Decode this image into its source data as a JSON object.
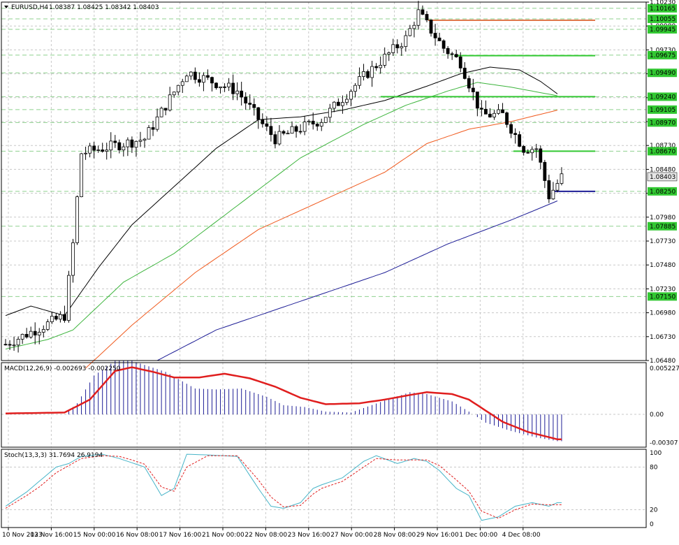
{
  "header": {
    "symbol": "EURUSD,H4",
    "ohlc": "1.08387 1.08425 1.08342 1.08403"
  },
  "colors": {
    "up_candle": "#ffffff",
    "down_candle": "#000000",
    "ma_fast": "#000000",
    "ma_mid": "#3cb43c",
    "ma_slow": "#f05a1e",
    "ma_long": "#1e1e96",
    "level_resistance": "#e0784a",
    "level_green": "#32c832",
    "level_blue": "#1e1e96",
    "macd_hist": "#1e1e96",
    "macd_signal": "#e01e1e",
    "stoch_main": "#46b4c8",
    "stoch_signal": "#e01e1e",
    "price_tag_bg": "#e6e6e6"
  },
  "chart_data": [
    {
      "type": "candlestick",
      "name": "price",
      "ylim": [
        1.0648,
        1.1023
      ],
      "y_ticks": [
        "1.10230",
        "1.09980",
        "1.09730",
        "1.09480",
        "1.09230",
        "1.08980",
        "1.08730",
        "1.08480",
        "1.08230",
        "1.07980",
        "1.07730",
        "1.07480",
        "1.07230",
        "1.06980",
        "1.06730",
        "1.06480"
      ],
      "level_labels": [
        {
          "value": 1.10165,
          "text": "1.10165"
        },
        {
          "value": 1.10055,
          "text": "1.10055"
        },
        {
          "value": 1.09945,
          "text": "1.09945"
        },
        {
          "value": 1.09675,
          "text": "1.09675"
        },
        {
          "value": 1.0949,
          "text": "1.09490"
        },
        {
          "value": 1.0924,
          "text": "1.09240"
        },
        {
          "value": 1.09105,
          "text": "1.09105"
        },
        {
          "value": 1.0897,
          "text": "1.08970"
        },
        {
          "value": 1.0867,
          "text": "1.08670"
        },
        {
          "value": 1.0825,
          "text": "1.08250"
        },
        {
          "value": 1.07885,
          "text": "1.07885"
        },
        {
          "value": 1.0715,
          "text": "1.07150"
        }
      ],
      "current_price": {
        "value": 1.08403,
        "text": "1.08403"
      },
      "x_labels": [
        "10 Nov 2023",
        "13 Nov 16:00",
        "15 Nov 00:00",
        "16 Nov 08:00",
        "17 Nov 16:00",
        "21 Nov 00:00",
        "22 Nov 08:00",
        "23 Nov 16:00",
        "27 Nov 00:00",
        "28 Nov 08:00",
        "29 Nov 16:00",
        "1 Dec 00:00",
        "4 Dec 08:00"
      ],
      "key_points": [
        {
          "x": 0,
          "y": 1.0665
        },
        {
          "x": 14,
          "y": 1.0695
        },
        {
          "x": 16,
          "y": 1.077
        },
        {
          "x": 18,
          "y": 1.0865
        },
        {
          "x": 33,
          "y": 1.088
        },
        {
          "x": 43,
          "y": 1.095
        },
        {
          "x": 55,
          "y": 1.093
        },
        {
          "x": 61,
          "y": 1.0895
        },
        {
          "x": 64,
          "y": 1.088
        },
        {
          "x": 75,
          "y": 1.09
        },
        {
          "x": 85,
          "y": 1.0945
        },
        {
          "x": 95,
          "y": 1.0985
        },
        {
          "x": 98,
          "y": 1.1012
        },
        {
          "x": 104,
          "y": 1.0975
        },
        {
          "x": 108,
          "y": 1.096
        },
        {
          "x": 113,
          "y": 1.0905
        },
        {
          "x": 118,
          "y": 1.0905
        },
        {
          "x": 123,
          "y": 1.087
        },
        {
          "x": 126,
          "y": 1.087
        },
        {
          "x": 129,
          "y": 1.082
        },
        {
          "x": 132,
          "y": 1.084
        }
      ],
      "levels": [
        {
          "value": 1.1004,
          "kind": "resistance"
        },
        {
          "value": 1.0967,
          "kind": "green"
        },
        {
          "value": 1.0924,
          "kind": "green"
        },
        {
          "value": 1.0867,
          "kind": "green"
        },
        {
          "value": 1.0825,
          "kind": "blue"
        }
      ],
      "moving_averages": [
        {
          "key": "ma_fast",
          "points": [
            [
              0,
              1.0695
            ],
            [
              6,
              1.0705
            ],
            [
              14,
              1.0695
            ],
            [
              22,
              1.0745
            ],
            [
              30,
              1.079
            ],
            [
              40,
              1.083
            ],
            [
              50,
              1.087
            ],
            [
              60,
              1.09
            ],
            [
              70,
              1.0903
            ],
            [
              80,
              1.091
            ],
            [
              90,
              1.092
            ],
            [
              100,
              1.0935
            ],
            [
              108,
              1.0948
            ],
            [
              115,
              1.0955
            ],
            [
              122,
              1.0952
            ],
            [
              127,
              1.094
            ],
            [
              131,
              1.0927
            ]
          ]
        },
        {
          "key": "ma_mid",
          "points": [
            [
              0,
              1.066
            ],
            [
              10,
              1.067
            ],
            [
              16,
              1.068
            ],
            [
              28,
              1.073
            ],
            [
              40,
              1.076
            ],
            [
              55,
              1.081
            ],
            [
              70,
              1.086
            ],
            [
              85,
              1.0895
            ],
            [
              95,
              1.0915
            ],
            [
              105,
              1.093
            ],
            [
              112,
              1.0939
            ],
            [
              120,
              1.0934
            ],
            [
              131,
              1.0925
            ]
          ]
        },
        {
          "key": "ma_slow",
          "points": [
            [
              19,
              1.064
            ],
            [
              30,
              1.0685
            ],
            [
              45,
              1.074
            ],
            [
              60,
              1.0785
            ],
            [
              75,
              1.0815
            ],
            [
              90,
              1.0845
            ],
            [
              100,
              1.0875
            ],
            [
              110,
              1.089
            ],
            [
              120,
              1.0898
            ],
            [
              131,
              1.091
            ]
          ]
        },
        {
          "key": "ma_long",
          "points": [
            [
              36,
              1.0648
            ],
            [
              50,
              1.068
            ],
            [
              70,
              1.071
            ],
            [
              90,
              1.074
            ],
            [
              105,
              1.077
            ],
            [
              120,
              1.0795
            ],
            [
              131,
              1.0815
            ]
          ]
        }
      ]
    },
    {
      "type": "histogram",
      "name": "macd",
      "label": "MACD(12,26,9) -0.002693 -0.002250",
      "ylim": [
        -0.00355,
        0.0056
      ],
      "y_ticks": [
        {
          "value": 0.005227,
          "text": "0.005227"
        },
        {
          "value": 0.0,
          "text": "0.00"
        },
        {
          "value": -0.00307,
          "text": "-0.00307"
        }
      ],
      "hist_points": [
        [
          0,
          0
        ],
        [
          14,
          0
        ],
        [
          17,
          0.0012
        ],
        [
          21,
          0.0042
        ],
        [
          26,
          0.0058
        ],
        [
          30,
          0.0058
        ],
        [
          38,
          0.0046
        ],
        [
          45,
          0.0028
        ],
        [
          50,
          0.0027
        ],
        [
          56,
          0.0028
        ],
        [
          62,
          0.0019
        ],
        [
          66,
          0.001
        ],
        [
          71,
          0.0008
        ],
        [
          76,
          0.0003
        ],
        [
          82,
          0.0002
        ],
        [
          90,
          0.0015
        ],
        [
          96,
          0.0024
        ],
        [
          100,
          0.0022
        ],
        [
          106,
          0.0014
        ],
        [
          110,
          0.0003
        ],
        [
          114,
          -0.0009
        ],
        [
          120,
          -0.0018
        ],
        [
          126,
          -0.0025
        ],
        [
          131,
          -0.0029
        ]
      ],
      "signal_points": [
        [
          0,
          0.0001
        ],
        [
          14,
          0.0002
        ],
        [
          20,
          0.0016
        ],
        [
          26,
          0.0047
        ],
        [
          30,
          0.0051
        ],
        [
          35,
          0.0046
        ],
        [
          40,
          0.004
        ],
        [
          46,
          0.004
        ],
        [
          52,
          0.0044
        ],
        [
          58,
          0.0039
        ],
        [
          64,
          0.003
        ],
        [
          70,
          0.0018
        ],
        [
          76,
          0.0011
        ],
        [
          84,
          0.0012
        ],
        [
          90,
          0.0016
        ],
        [
          96,
          0.0021
        ],
        [
          100,
          0.0024
        ],
        [
          106,
          0.0022
        ],
        [
          110,
          0.0016
        ],
        [
          114,
          0.0004
        ],
        [
          118,
          -0.0008
        ],
        [
          124,
          -0.0019
        ],
        [
          131,
          -0.0027
        ]
      ]
    },
    {
      "type": "line",
      "name": "stochastic",
      "label": "Stoch(13,3,3) 31.7694 26.9194",
      "ylim": [
        -5,
        105
      ],
      "y_ticks": [
        {
          "value": 100,
          "text": "100"
        },
        {
          "value": 80,
          "text": "80"
        },
        {
          "value": 20,
          "text": "20"
        },
        {
          "value": 0,
          "text": "0"
        }
      ],
      "main_points": [
        [
          0,
          25
        ],
        [
          5,
          45
        ],
        [
          8,
          60
        ],
        [
          12,
          80
        ],
        [
          15,
          85
        ],
        [
          18,
          95
        ],
        [
          23,
          98
        ],
        [
          27,
          92
        ],
        [
          30,
          86
        ],
        [
          33,
          80
        ],
        [
          37,
          40
        ],
        [
          40,
          50
        ],
        [
          43,
          98
        ],
        [
          48,
          97
        ],
        [
          55,
          95
        ],
        [
          60,
          50
        ],
        [
          63,
          25
        ],
        [
          66,
          22
        ],
        [
          70,
          30
        ],
        [
          73,
          50
        ],
        [
          75,
          55
        ],
        [
          80,
          65
        ],
        [
          85,
          88
        ],
        [
          88,
          96
        ],
        [
          93,
          85
        ],
        [
          97,
          92
        ],
        [
          100,
          88
        ],
        [
          103,
          75
        ],
        [
          107,
          50
        ],
        [
          110,
          40
        ],
        [
          113,
          5
        ],
        [
          117,
          10
        ],
        [
          121,
          25
        ],
        [
          125,
          30
        ],
        [
          129,
          25
        ],
        [
          131,
          30
        ]
      ],
      "signal_points": [
        [
          0,
          22
        ],
        [
          5,
          40
        ],
        [
          8,
          52
        ],
        [
          12,
          72
        ],
        [
          15,
          82
        ],
        [
          18,
          92
        ],
        [
          23,
          96
        ],
        [
          27,
          95
        ],
        [
          30,
          90
        ],
        [
          33,
          84
        ],
        [
          37,
          52
        ],
        [
          40,
          46
        ],
        [
          43,
          80
        ],
        [
          48,
          96
        ],
        [
          55,
          96
        ],
        [
          60,
          62
        ],
        [
          63,
          38
        ],
        [
          66,
          24
        ],
        [
          70,
          26
        ],
        [
          73,
          42
        ],
        [
          75,
          50
        ],
        [
          80,
          60
        ],
        [
          85,
          80
        ],
        [
          88,
          92
        ],
        [
          93,
          90
        ],
        [
          97,
          90
        ],
        [
          100,
          90
        ],
        [
          103,
          82
        ],
        [
          107,
          62
        ],
        [
          110,
          46
        ],
        [
          113,
          18
        ],
        [
          117,
          8
        ],
        [
          121,
          20
        ],
        [
          125,
          28
        ],
        [
          129,
          27
        ],
        [
          131,
          27
        ]
      ]
    }
  ]
}
